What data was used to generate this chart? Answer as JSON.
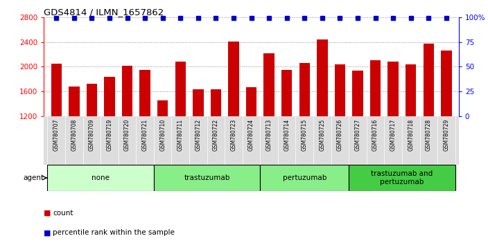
{
  "title": "GDS4814 / ILMN_1657862",
  "samples": [
    "GSM780707",
    "GSM780708",
    "GSM780709",
    "GSM780719",
    "GSM780720",
    "GSM780721",
    "GSM780710",
    "GSM780711",
    "GSM780712",
    "GSM780722",
    "GSM780723",
    "GSM780724",
    "GSM780713",
    "GSM780714",
    "GSM780715",
    "GSM780725",
    "GSM780726",
    "GSM780727",
    "GSM780716",
    "GSM780717",
    "GSM780718",
    "GSM780728",
    "GSM780729"
  ],
  "counts": [
    2050,
    1680,
    1720,
    1840,
    2020,
    1950,
    1460,
    2080,
    1640,
    1640,
    2410,
    1670,
    2220,
    1950,
    2060,
    2440,
    2040,
    1940,
    2100,
    2080,
    2040,
    2370,
    2260
  ],
  "bar_color": "#cc0000",
  "dot_color": "#0000cc",
  "ylim_left": [
    1200,
    2800
  ],
  "ylim_right": [
    0,
    100
  ],
  "yticks_left": [
    1200,
    1600,
    2000,
    2400,
    2800
  ],
  "yticks_right": [
    0,
    25,
    50,
    75,
    100
  ],
  "ytick_right_labels": [
    "0",
    "25",
    "50",
    "75",
    "100%"
  ],
  "groups": [
    {
      "label": "none",
      "start": 0,
      "end": 6
    },
    {
      "label": "trastuzumab",
      "start": 6,
      "end": 12
    },
    {
      "label": "pertuzumab",
      "start": 12,
      "end": 17
    },
    {
      "label": "trastuzumab and\npertuzumab",
      "start": 17,
      "end": 23
    }
  ],
  "group_colors": [
    "#ccffcc",
    "#88ee88",
    "#88ee88",
    "#44cc44"
  ],
  "agent_label": "agent",
  "legend_count_label": "count",
  "legend_percentile_label": "percentile rank within the sample",
  "background_color": "#ffffff",
  "grid_color": "#888888",
  "tick_area_color": "#dddddd"
}
